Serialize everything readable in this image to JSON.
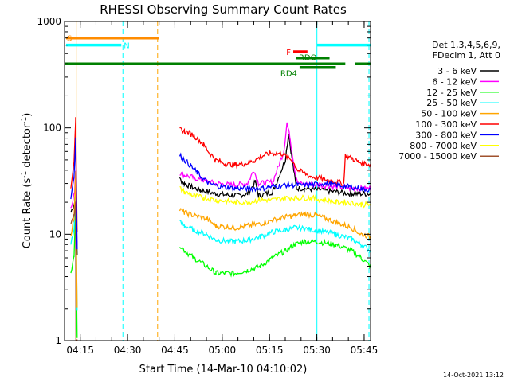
{
  "chart_data": {
    "type": "line",
    "title": "RHESSI Observing Summary Count Rates",
    "xlabel": "Start Time (14-Mar-10 04:10:02)",
    "ylabel_main": "Count Rate (s",
    "ylabel_sup1": "-1",
    "ylabel_mid": " detector",
    "ylabel_sup2": "-1",
    "ylabel_end": ")",
    "x_unit": "minutes after 04:10:02",
    "xlim": [
      0,
      97
    ],
    "ylim": [
      1,
      1000
    ],
    "yscale": "log",
    "x_ticks": [
      {
        "value": 4.97,
        "label": "04:15"
      },
      {
        "value": 19.97,
        "label": "04:30"
      },
      {
        "value": 34.97,
        "label": "04:45"
      },
      {
        "value": 49.97,
        "label": "05:00"
      },
      {
        "value": 64.97,
        "label": "05:15"
      },
      {
        "value": 79.97,
        "label": "05:30"
      },
      {
        "value": 94.97,
        "label": "05:45"
      }
    ],
    "y_ticks": [
      {
        "value": 1,
        "label": "1"
      },
      {
        "value": 10,
        "label": "10"
      },
      {
        "value": 100,
        "label": "100"
      },
      {
        "value": 1000,
        "label": "1000"
      }
    ],
    "legend_header": [
      "Det 1,3,4,5,6,9,",
      "FDecim 1, Att 0"
    ],
    "series": [
      {
        "name": "3 - 6 keV",
        "color": "#000000",
        "points": [
          [
            2.0,
            16
          ],
          [
            3.2,
            20
          ],
          [
            3.5,
            30
          ],
          [
            4.0,
            6.5
          ],
          [
            36.5,
            33
          ],
          [
            38.0,
            30
          ],
          [
            40.0,
            28
          ],
          [
            43.0,
            26
          ],
          [
            48.0,
            24
          ],
          [
            54.0,
            23
          ],
          [
            58.0,
            24
          ],
          [
            60.5,
            31
          ],
          [
            61.5,
            23
          ],
          [
            66.0,
            25
          ],
          [
            70.0,
            50
          ],
          [
            71.0,
            88
          ],
          [
            71.8,
            60
          ],
          [
            73.5,
            27
          ],
          [
            76.0,
            27
          ],
          [
            81.0,
            26
          ],
          [
            86.0,
            25
          ],
          [
            91.0,
            24
          ],
          [
            93.0,
            24
          ],
          [
            97.0,
            24
          ]
        ]
      },
      {
        "name": "6 - 12 keV",
        "color": "#ff00ff",
        "points": [
          [
            2.0,
            18
          ],
          [
            3.2,
            25
          ],
          [
            3.5,
            40
          ],
          [
            4.0,
            8
          ],
          [
            36.5,
            38
          ],
          [
            38.0,
            36
          ],
          [
            41.0,
            34
          ],
          [
            44.0,
            32
          ],
          [
            48.0,
            30
          ],
          [
            54.0,
            29
          ],
          [
            58.0,
            30
          ],
          [
            60.0,
            40
          ],
          [
            61.5,
            30
          ],
          [
            66.0,
            31
          ],
          [
            69.5,
            60
          ],
          [
            70.5,
            112
          ],
          [
            71.5,
            80
          ],
          [
            73.0,
            40
          ],
          [
            74.0,
            30
          ],
          [
            81.0,
            29
          ],
          [
            86.0,
            28
          ],
          [
            91.0,
            27
          ],
          [
            97.0,
            27
          ]
        ]
      },
      {
        "name": "12 - 25 keV",
        "color": "#00ff00",
        "points": [
          [
            2.0,
            4.5
          ],
          [
            3.0,
            6
          ],
          [
            3.5,
            20
          ],
          [
            4.0,
            1
          ],
          [
            36.5,
            8
          ],
          [
            38.0,
            7
          ],
          [
            41.0,
            6
          ],
          [
            45.0,
            5
          ],
          [
            48.0,
            4.3
          ],
          [
            54.0,
            4.3
          ],
          [
            58.0,
            4.6
          ],
          [
            62.0,
            5
          ],
          [
            66.0,
            6
          ],
          [
            70.0,
            7
          ],
          [
            73.0,
            8
          ],
          [
            76.0,
            8.6
          ],
          [
            80.0,
            8.5
          ],
          [
            86.0,
            8
          ],
          [
            91.0,
            7
          ],
          [
            94.0,
            6
          ],
          [
            97.0,
            5
          ]
        ]
      },
      {
        "name": "25 - 50 keV",
        "color": "#00ffff",
        "points": [
          [
            2.0,
            8
          ],
          [
            3.0,
            11
          ],
          [
            3.5,
            30
          ],
          [
            4.0,
            2
          ],
          [
            36.5,
            13
          ],
          [
            38.0,
            12
          ],
          [
            41.0,
            11
          ],
          [
            45.0,
            10
          ],
          [
            48.0,
            8.8
          ],
          [
            54.0,
            8.5
          ],
          [
            58.0,
            8.8
          ],
          [
            62.0,
            9.5
          ],
          [
            66.0,
            10.5
          ],
          [
            70.0,
            11
          ],
          [
            73.0,
            11.5
          ],
          [
            76.0,
            11.3
          ],
          [
            80.0,
            10.8
          ],
          [
            86.0,
            10
          ],
          [
            91.0,
            9
          ],
          [
            94.0,
            8
          ],
          [
            97.0,
            7
          ]
        ]
      },
      {
        "name": "50 - 100 keV",
        "color": "#ffa500",
        "points": [
          [
            2.0,
            10
          ],
          [
            3.0,
            14
          ],
          [
            3.5,
            40
          ],
          [
            4.0,
            2
          ],
          [
            36.5,
            17
          ],
          [
            38.0,
            16
          ],
          [
            41.0,
            15
          ],
          [
            45.0,
            14
          ],
          [
            48.0,
            12
          ],
          [
            54.0,
            11.5
          ],
          [
            58.0,
            12
          ],
          [
            62.0,
            12.5
          ],
          [
            66.0,
            13.5
          ],
          [
            70.0,
            14.5
          ],
          [
            73.0,
            15
          ],
          [
            76.0,
            15.5
          ],
          [
            80.0,
            15
          ],
          [
            86.0,
            13
          ],
          [
            91.0,
            11.5
          ],
          [
            94.0,
            10
          ],
          [
            97.0,
            9.5
          ]
        ]
      },
      {
        "name": "100 - 300 keV",
        "color": "#ff0000",
        "points": [
          [
            2.0,
            28
          ],
          [
            3.0,
            50
          ],
          [
            3.5,
            120
          ],
          [
            4.0,
            10
          ],
          [
            36.5,
            97
          ],
          [
            38.0,
            93
          ],
          [
            41.0,
            85
          ],
          [
            44.0,
            70
          ],
          [
            46.0,
            58
          ],
          [
            48.0,
            50
          ],
          [
            51.0,
            46
          ],
          [
            54.0,
            45
          ],
          [
            57.0,
            46
          ],
          [
            60.0,
            49
          ],
          [
            63.0,
            55
          ],
          [
            66.0,
            58
          ],
          [
            69.0,
            57
          ],
          [
            72.0,
            50
          ],
          [
            74.0,
            40
          ],
          [
            78.0,
            35
          ],
          [
            82.0,
            33
          ],
          [
            86.0,
            31
          ],
          [
            88.5,
            30
          ],
          [
            89.0,
            55
          ],
          [
            91.0,
            52
          ],
          [
            93.0,
            48
          ],
          [
            97.0,
            45
          ]
        ]
      },
      {
        "name": "300 - 800 keV",
        "color": "#0000ff",
        "points": [
          [
            2.0,
            22
          ],
          [
            3.0,
            35
          ],
          [
            3.5,
            80
          ],
          [
            4.0,
            7
          ],
          [
            36.5,
            55
          ],
          [
            38.0,
            50
          ],
          [
            40.0,
            44
          ],
          [
            42.0,
            38
          ],
          [
            44.0,
            33
          ],
          [
            46.0,
            30
          ],
          [
            49.0,
            28
          ],
          [
            54.0,
            27
          ],
          [
            58.0,
            27
          ],
          [
            62.0,
            27
          ],
          [
            66.0,
            28
          ],
          [
            70.0,
            29
          ],
          [
            74.0,
            29
          ],
          [
            78.0,
            29
          ],
          [
            82.0,
            30
          ],
          [
            86.0,
            29
          ],
          [
            90.0,
            28
          ],
          [
            94.0,
            27
          ],
          [
            97.0,
            26
          ]
        ]
      },
      {
        "name": "800 - 7000 keV",
        "color": "#ffff00",
        "points": [
          [
            36.5,
            27
          ],
          [
            38.0,
            25
          ],
          [
            41.0,
            23
          ],
          [
            44.0,
            22
          ],
          [
            48.0,
            21
          ],
          [
            54.0,
            20
          ],
          [
            58.0,
            20
          ],
          [
            62.0,
            21
          ],
          [
            66.0,
            21
          ],
          [
            70.0,
            22
          ],
          [
            74.0,
            22
          ],
          [
            78.0,
            22
          ],
          [
            82.0,
            21
          ],
          [
            86.0,
            20
          ],
          [
            90.0,
            20
          ],
          [
            94.0,
            19
          ],
          [
            97.0,
            19
          ]
        ]
      },
      {
        "name": "7000 - 15000 keV",
        "color": "#a0522d",
        "points": [
          [
            2.0,
            12
          ],
          [
            3.0,
            15
          ],
          [
            3.5,
            20
          ],
          [
            3.6,
            1
          ],
          [
            4.0,
            1
          ]
        ]
      }
    ],
    "vertical_lines": [
      {
        "x": 3.7,
        "color": "#ffa500",
        "dash": false
      },
      {
        "x": 18.5,
        "color": "#00ffff",
        "dash": true
      },
      {
        "x": 29.5,
        "color": "#ffa500",
        "dash": true
      },
      {
        "x": 80.0,
        "color": "#00ffff",
        "dash": false
      },
      {
        "x": 96.5,
        "color": "#00ffff",
        "dash": true
      }
    ],
    "flag_bars": [
      {
        "label": "S",
        "color": "#ff8c00",
        "x1": 0.5,
        "x2": 30.0,
        "y": 700
      },
      {
        "label": "N",
        "color": "#00ffff",
        "x1": 0.5,
        "x2": 18.0,
        "y": 600
      },
      {
        "label": "",
        "color": "#00ffff",
        "x1": 80.0,
        "x2": 97.0,
        "y": 600
      },
      {
        "label": "F",
        "color": "#ff0000",
        "x1": 72.5,
        "x2": 77.0,
        "y": 520
      },
      {
        "label": "",
        "color": "#008000",
        "x1": 0.0,
        "x2": 89.0,
        "y": 400
      },
      {
        "label": "",
        "color": "#008000",
        "x1": 92.0,
        "x2": 97.0,
        "y": 400
      },
      {
        "label": "RDO",
        "color": "#008000",
        "x1": 73.5,
        "x2": 84.0,
        "y": 455
      },
      {
        "label": "RD4",
        "color": "#008000",
        "x1": 74.5,
        "x2": 86.0,
        "y": 370
      }
    ],
    "footer_timestamp": "14-Oct-2021 13:12"
  }
}
